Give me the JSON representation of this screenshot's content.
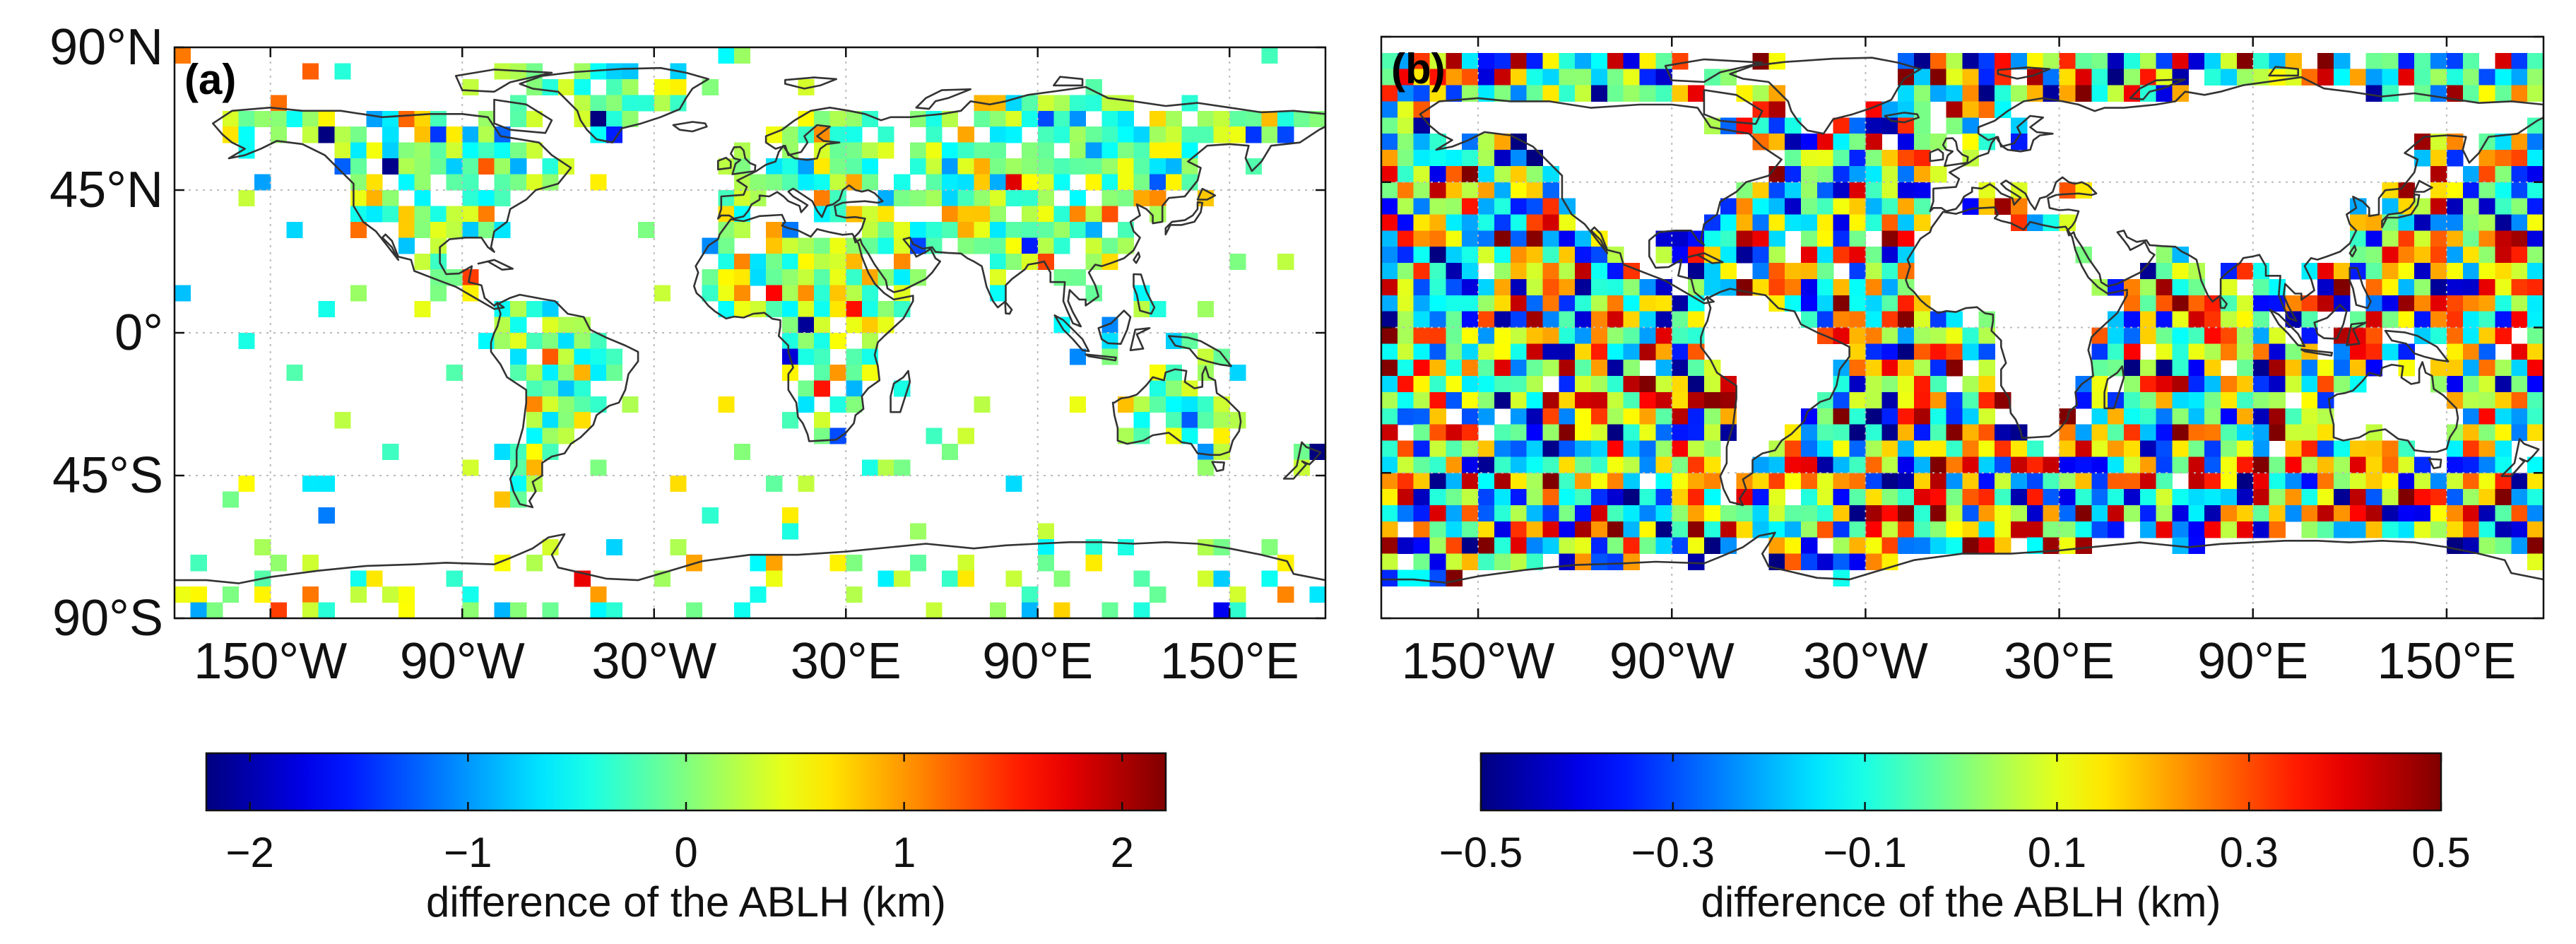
{
  "figure": {
    "panels": [
      {
        "label": "(a)",
        "coverage": "land",
        "seed": 7,
        "xlim": [
          -180,
          180
        ],
        "ylim": [
          -90,
          90
        ],
        "x_ticks": [
          -150,
          -90,
          -30,
          30,
          90,
          150
        ],
        "x_tick_labels": [
          "150°W",
          "90°W",
          "30°W",
          "30°E",
          "90°E",
          "150°E"
        ],
        "y_ticks": [
          90,
          45,
          0,
          -45,
          -90
        ],
        "y_tick_labels": [
          "90°N",
          "45°N",
          "0°",
          "45°S",
          "90°S"
        ],
        "colorbar": {
          "range": [
            -2.2,
            2.2
          ],
          "ticks": [
            -2,
            -1,
            0,
            1,
            2
          ],
          "tick_labels": [
            "−2",
            "−1",
            "0",
            "1",
            "2"
          ],
          "label": "difference of the ABLH (km)"
        }
      },
      {
        "label": "(b)",
        "coverage": "ocean",
        "seed": 19,
        "xlim": [
          -180,
          180
        ],
        "ylim": [
          -90,
          90
        ],
        "x_ticks": [
          -150,
          -90,
          -30,
          30,
          90,
          150
        ],
        "x_tick_labels": [
          "150°W",
          "90°W",
          "30°W",
          "30°E",
          "90°E",
          "150°E"
        ],
        "y_ticks": [
          90,
          45,
          0,
          -45,
          -90
        ],
        "y_tick_labels": [],
        "colorbar": {
          "range": [
            -0.5,
            0.5
          ],
          "ticks": [
            -0.5,
            -0.3,
            -0.1,
            0.1,
            0.3,
            0.5
          ],
          "tick_labels": [
            "−0.5",
            "−0.3",
            "−0.1",
            "0.1",
            "0.3",
            "0.5"
          ],
          "label": "difference of the ABLH (km)"
        }
      }
    ],
    "colormap": "jet",
    "coastline_color": "#333333",
    "grid_color": "#bbbbbb"
  },
  "chart_data": [
    {
      "type": "heatmap",
      "title": "(a)",
      "description_of_values": "gridded ABLH difference over land",
      "xlabel": "",
      "ylabel": "",
      "x_ticks": [
        "150°W",
        "90°W",
        "30°W",
        "30°E",
        "90°E",
        "150°E"
      ],
      "y_ticks": [
        "90°N",
        "45°N",
        "0°",
        "45°S",
        "90°S"
      ],
      "xlim": [
        -180,
        180
      ],
      "ylim": [
        -90,
        90
      ],
      "colorbar_label": "difference of the ABLH (km)",
      "colorbar_range": [
        -2.2,
        2.2
      ],
      "colorbar_ticks": [
        -2,
        -1,
        0,
        1,
        2
      ]
    },
    {
      "type": "heatmap",
      "title": "(b)",
      "description_of_values": "gridded ABLH difference over ocean",
      "xlabel": "",
      "ylabel": "",
      "x_ticks": [
        "150°W",
        "90°W",
        "30°W",
        "30°E",
        "90°E",
        "150°E"
      ],
      "xlim": [
        -180,
        180
      ],
      "ylim": [
        -90,
        90
      ],
      "colorbar_label": "difference of the ABLH (km)",
      "colorbar_range": [
        -0.5,
        0.5
      ],
      "colorbar_ticks": [
        -0.5,
        -0.3,
        -0.1,
        0.1,
        0.3,
        0.5
      ]
    }
  ]
}
